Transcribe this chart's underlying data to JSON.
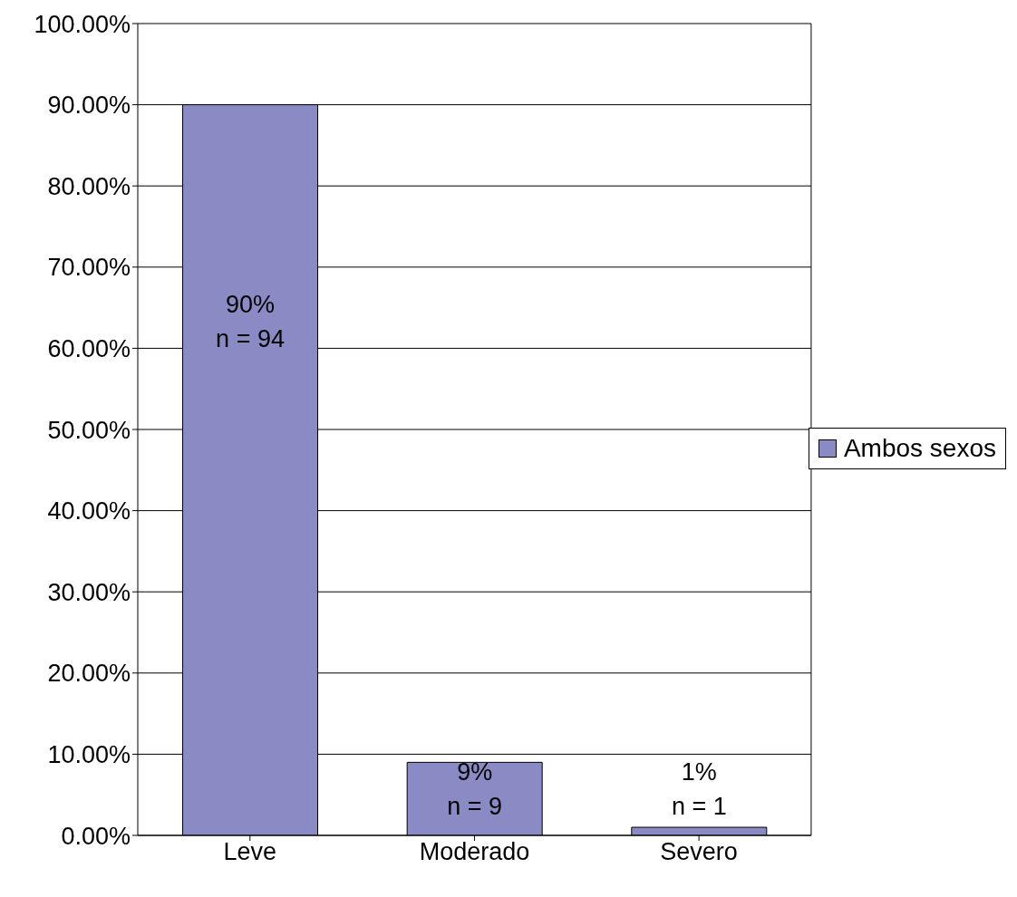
{
  "chart_data": {
    "type": "bar",
    "categories": [
      "Leve",
      "Moderado",
      "Severo"
    ],
    "series": [
      {
        "name": "Ambos sexos",
        "color": "#8a8ac4",
        "values": [
          90,
          9,
          1
        ],
        "value_labels": [
          "90%\nn = 94",
          "9%\nn = 9",
          "1%\nn = 1"
        ]
      }
    ],
    "ylim": [
      0,
      100
    ],
    "yticks": [
      {
        "value": 0,
        "label": "0.00%"
      },
      {
        "value": 10,
        "label": "10.00%"
      },
      {
        "value": 20,
        "label": "20.00%"
      },
      {
        "value": 30,
        "label": "30.00%"
      },
      {
        "value": 40,
        "label": "40.00%"
      },
      {
        "value": 50,
        "label": "50.00%"
      },
      {
        "value": 60,
        "label": "60.00%"
      },
      {
        "value": 70,
        "label": "70.00%"
      },
      {
        "value": 80,
        "label": "80.00%"
      },
      {
        "value": 90,
        "label": "90.00%"
      },
      {
        "value": 100,
        "label": "100.00%"
      }
    ],
    "grid": "y",
    "legend": "right"
  }
}
